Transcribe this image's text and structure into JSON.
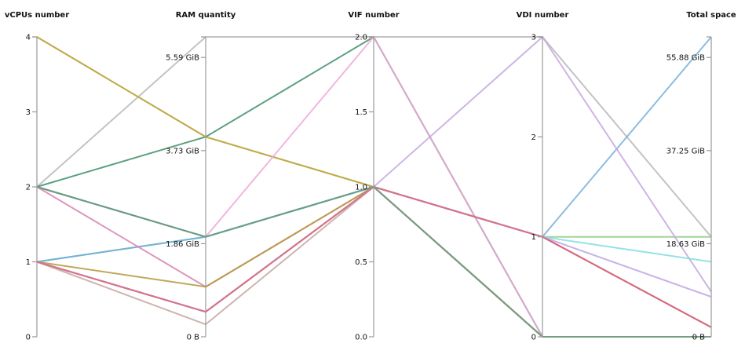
{
  "chart_data": {
    "type": "parallel-coordinates",
    "axes": [
      {
        "name": "vCPUs number",
        "range": [
          0,
          4
        ],
        "ticks": [
          {
            "v": 0,
            "label": "0"
          },
          {
            "v": 1,
            "label": "1"
          },
          {
            "v": 2,
            "label": "2"
          },
          {
            "v": 3,
            "label": "3"
          },
          {
            "v": 4,
            "label": "4"
          }
        ]
      },
      {
        "name": "RAM quantity",
        "unit": "GiB",
        "range": [
          0,
          6
        ],
        "ticks": [
          {
            "v": 0,
            "label": "0 B"
          },
          {
            "v": 1.863,
            "label": "1.86 GiB"
          },
          {
            "v": 3.725,
            "label": "3.73 GiB"
          },
          {
            "v": 5.588,
            "label": "5.59 GiB"
          }
        ]
      },
      {
        "name": "VIF number",
        "range": [
          0,
          2
        ],
        "ticks": [
          {
            "v": 0,
            "label": "0.0"
          },
          {
            "v": 0.5,
            "label": "0.5"
          },
          {
            "v": 1,
            "label": "1.0"
          },
          {
            "v": 1.5,
            "label": "1.5"
          },
          {
            "v": 2,
            "label": "2.0"
          }
        ]
      },
      {
        "name": "VDI number",
        "range": [
          0,
          3
        ],
        "ticks": [
          {
            "v": 0,
            "label": "0"
          },
          {
            "v": 1,
            "label": "1"
          },
          {
            "v": 2,
            "label": "2"
          },
          {
            "v": 3,
            "label": "3"
          }
        ]
      },
      {
        "name": "Total space",
        "unit": "GiB",
        "range": [
          0,
          60
        ],
        "ticks": [
          {
            "v": 0,
            "label": "0 B"
          },
          {
            "v": 18.63,
            "label": "18.63 GiB"
          },
          {
            "v": 37.25,
            "label": "37.25 GiB"
          },
          {
            "v": 55.88,
            "label": "55.88 GiB"
          }
        ]
      }
    ],
    "series": [
      {
        "color": "#b8b8b8",
        "values": [
          2,
          6,
          2,
          3,
          20
        ]
      },
      {
        "color": "#8fce86",
        "values": [
          4,
          4,
          1,
          1,
          20
        ]
      },
      {
        "color": "#3f8f6a",
        "values": [
          2,
          4,
          2,
          0,
          0
        ]
      },
      {
        "color": "#c9a23a",
        "values": [
          4,
          4,
          1,
          0,
          0
        ]
      },
      {
        "color": "#f0a8d8",
        "values": [
          2,
          2,
          2,
          0,
          0
        ]
      },
      {
        "color": "#4a9a7a",
        "values": [
          2,
          2,
          1,
          0,
          0
        ]
      },
      {
        "color": "#39b8b0",
        "values": [
          1,
          2,
          1,
          0,
          0
        ]
      },
      {
        "color": "#7ab0d8",
        "values": [
          1,
          2,
          1,
          1,
          60
        ]
      },
      {
        "color": "#d884b0",
        "values": [
          2,
          1,
          1,
          0,
          0
        ]
      },
      {
        "color": "#b49a3a",
        "values": [
          1,
          1,
          1,
          0,
          0
        ]
      },
      {
        "color": "#9a6478",
        "values": [
          1,
          0.5,
          1,
          1,
          1.9
        ]
      },
      {
        "color": "#c4a8a0",
        "values": [
          1,
          0.25,
          1,
          0,
          0
        ]
      },
      {
        "color": "#c4a8e0",
        "values": [
          1,
          0.5,
          1,
          3,
          9
        ]
      },
      {
        "color": "#80dde0",
        "values": [
          1,
          0.5,
          1,
          1,
          15
        ]
      },
      {
        "color": "#bca4e0",
        "values": [
          1,
          0.5,
          1,
          1,
          8
        ]
      },
      {
        "color": "#e06478",
        "values": [
          1,
          0.5,
          1,
          1,
          1.9
        ]
      },
      {
        "color": "#6a9a80",
        "values": [
          2,
          2,
          1,
          0,
          0
        ]
      }
    ]
  }
}
